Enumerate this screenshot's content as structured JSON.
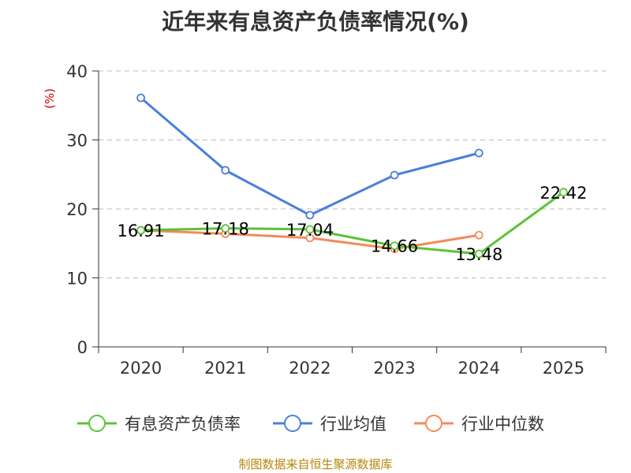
{
  "chart_data": {
    "type": "line",
    "title": "近年来有息资产负债率情况(%)",
    "ylabel": "(%)",
    "xlabel": "",
    "categories": [
      "2020",
      "2021",
      "2022",
      "2023",
      "2024",
      "2025"
    ],
    "ylim": [
      0,
      40
    ],
    "yticks": [
      0,
      10,
      20,
      30,
      40
    ],
    "grid": true,
    "legend_position": "bottom",
    "series": [
      {
        "name": "有息资产负债率",
        "color": "#5cc23a",
        "values": [
          16.91,
          17.18,
          17.04,
          14.66,
          13.48,
          22.42
        ],
        "labels": [
          "16.91",
          "17.18",
          "17.04",
          "14.66",
          "13.48",
          "22.42"
        ]
      },
      {
        "name": "行业均值",
        "color": "#4a7fdc",
        "values": [
          36.1,
          25.6,
          19.1,
          24.9,
          28.1,
          null
        ]
      },
      {
        "name": "行业中位数",
        "color": "#f5895a",
        "values": [
          16.9,
          16.4,
          15.8,
          14.2,
          16.2,
          null
        ]
      }
    ]
  },
  "source": "制图数据来自恒生聚源数据库"
}
